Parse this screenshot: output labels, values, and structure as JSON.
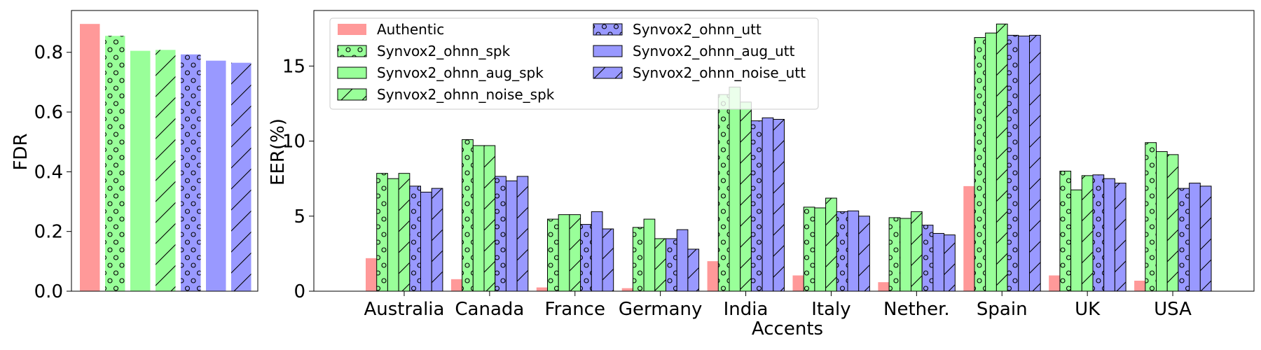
{
  "colors": {
    "authentic": "#ff9999",
    "green": "#99ff99",
    "blue": "#9999ff",
    "edge": "#000000"
  },
  "chart_data": [
    {
      "type": "bar",
      "ylabel": "FDR",
      "xlabel": "",
      "ylim": [
        0,
        0.94
      ],
      "yticks": [
        "0.0",
        "0.2",
        "0.4",
        "0.6",
        "0.8"
      ],
      "grid": false,
      "series": [
        {
          "name": "Authentic",
          "value": 0.895,
          "color": "authentic",
          "hatch": "none",
          "edged": false
        },
        {
          "name": "Synvox2_ohnn_spk",
          "value": 0.855,
          "color": "green",
          "hatch": "circle",
          "edged": false
        },
        {
          "name": "Synvox2_ohnn_aug_spk",
          "value": 0.805,
          "color": "green",
          "hatch": "none",
          "edged": false
        },
        {
          "name": "Synvox2_ohnn_noise_spk",
          "value": 0.808,
          "color": "green",
          "hatch": "slash",
          "edged": false
        },
        {
          "name": "Synvox2_ohnn_utt",
          "value": 0.793,
          "color": "blue",
          "hatch": "circle",
          "edged": false
        },
        {
          "name": "Synvox2_ohnn_aug_utt",
          "value": 0.772,
          "color": "blue",
          "hatch": "none",
          "edged": false
        },
        {
          "name": "Synvox2_ohnn_noise_utt",
          "value": 0.765,
          "color": "blue",
          "hatch": "slash",
          "edged": false
        }
      ]
    },
    {
      "type": "bar",
      "xlabel": "Accents",
      "ylabel": "EER(%)",
      "ylim": [
        0,
        18.7
      ],
      "yticks": [
        "0",
        "5",
        "10",
        "15"
      ],
      "grid": false,
      "legend_position": "top-left",
      "legend_columns": 2,
      "categories": [
        "Australia",
        "Canada",
        "France",
        "Germany",
        "India",
        "Italy",
        "Nether.",
        "Spain",
        "UK",
        "USA"
      ],
      "series": [
        {
          "name": "Authentic",
          "color": "authentic",
          "hatch": "none",
          "edged": false,
          "values": [
            2.2,
            0.8,
            0.25,
            0.2,
            2.0,
            1.05,
            0.6,
            7.0,
            1.05,
            0.7
          ]
        },
        {
          "name": "Synvox2_ohnn_spk",
          "color": "green",
          "hatch": "circle",
          "edged": true,
          "values": [
            7.85,
            10.1,
            4.8,
            4.25,
            13.1,
            5.6,
            4.9,
            16.9,
            8.0,
            9.9
          ]
        },
        {
          "name": "Synvox2_ohnn_aug_spk",
          "color": "green",
          "hatch": "none",
          "edged": true,
          "values": [
            7.5,
            9.7,
            5.1,
            4.8,
            13.6,
            5.55,
            4.85,
            17.2,
            6.75,
            9.3
          ]
        },
        {
          "name": "Synvox2_ohnn_noise_spk",
          "color": "green",
          "hatch": "slash",
          "edged": true,
          "values": [
            7.85,
            9.7,
            5.1,
            3.5,
            12.6,
            6.2,
            5.3,
            17.8,
            7.7,
            9.1
          ]
        },
        {
          "name": "Synvox2_ohnn_utt",
          "color": "blue",
          "hatch": "circle",
          "edged": true,
          "values": [
            7.0,
            7.65,
            4.45,
            3.5,
            11.35,
            5.3,
            4.4,
            17.05,
            7.75,
            6.85
          ]
        },
        {
          "name": "Synvox2_ohnn_aug_utt",
          "color": "blue",
          "hatch": "none",
          "edged": true,
          "values": [
            6.6,
            7.35,
            5.3,
            4.1,
            11.55,
            5.35,
            3.85,
            17.0,
            7.5,
            7.2
          ]
        },
        {
          "name": "Synvox2_ohnn_noise_utt",
          "color": "blue",
          "hatch": "slash",
          "edged": true,
          "values": [
            6.85,
            7.65,
            4.15,
            2.8,
            11.45,
            5.0,
            3.75,
            17.05,
            7.2,
            7.0
          ]
        }
      ]
    }
  ]
}
